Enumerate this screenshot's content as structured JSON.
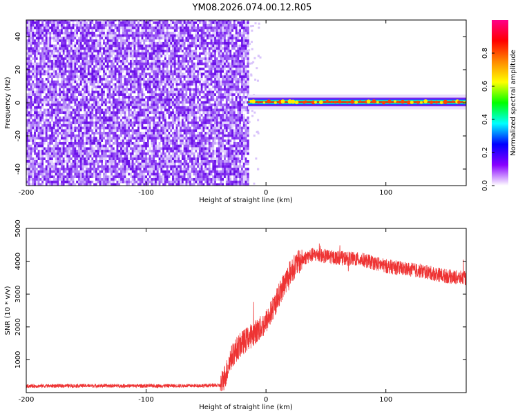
{
  "title": "YM08.2026.074.00.12.R05",
  "chart_data": [
    {
      "type": "heatmap",
      "xlabel": "Height of straight line (km)",
      "ylabel": "Frequency (Hz)",
      "xlim": [
        -200,
        167
      ],
      "ylim": [
        -50,
        50
      ],
      "xticks": [
        -200,
        -100,
        0,
        100
      ],
      "yticks": [
        -40,
        -20,
        0,
        20,
        40
      ],
      "noise_region_x": [
        -200,
        -15
      ],
      "signal_start_x": -15,
      "signal_frequency": 0.5,
      "colorbar": {
        "label": "Normalized spectral amplitude",
        "range": [
          0,
          1
        ],
        "ticks": [
          "0.0",
          "0.2",
          "0.4",
          "0.6",
          "0.8"
        ],
        "colors": [
          "#ffffff",
          "#8800ff",
          "#0000ff",
          "#00ffff",
          "#00ff00",
          "#ffff00",
          "#ff8800",
          "#ff0000",
          "#ff0088"
        ]
      }
    },
    {
      "type": "line",
      "xlabel": "Height of straight line (km)",
      "ylabel": "SNR (10 * v/v)",
      "xlim": [
        -200,
        167
      ],
      "ylim": [
        0,
        5000
      ],
      "xticks": [
        -200,
        -100,
        0,
        100
      ],
      "yticks": [
        1000,
        2000,
        3000,
        4000,
        5000
      ],
      "color": "#ee3333",
      "series": [
        {
          "name": "SNR",
          "x": [
            -200,
            -150,
            -100,
            -60,
            -38,
            -33,
            -30,
            -25,
            -20,
            -15,
            -10,
            -5,
            0,
            5,
            10,
            15,
            20,
            25,
            30,
            35,
            40,
            50,
            60,
            70,
            80,
            90,
            100,
            110,
            120,
            130,
            140,
            150,
            160,
            167
          ],
          "values": [
            200,
            210,
            205,
            210,
            220,
            600,
            1000,
            1300,
            1500,
            1650,
            1800,
            1950,
            2150,
            2500,
            2900,
            3300,
            3650,
            3900,
            4050,
            4150,
            4200,
            4150,
            4100,
            4080,
            4050,
            3950,
            3850,
            3800,
            3750,
            3700,
            3620,
            3550,
            3500,
            3480
          ]
        }
      ]
    }
  ]
}
